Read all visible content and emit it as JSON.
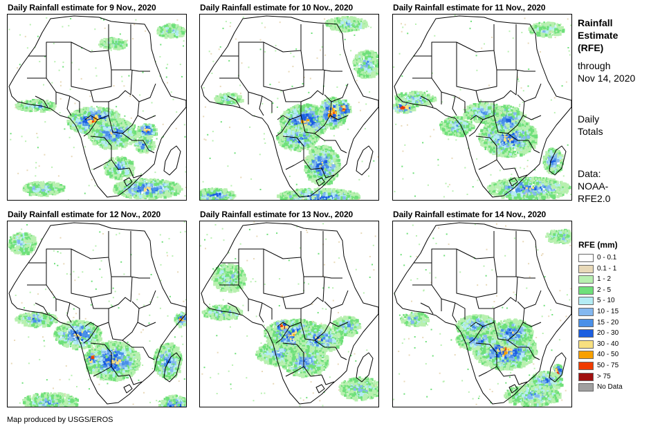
{
  "panels": [
    {
      "title": "Daily Rainfall estimate for 9 Nov., 2020",
      "day": 9
    },
    {
      "title": "Daily Rainfall estimate for 10 Nov., 2020",
      "day": 10
    },
    {
      "title": "Daily Rainfall estimate for 11 Nov., 2020",
      "day": 11
    },
    {
      "title": "Daily Rainfall estimate for 12 Nov., 2020",
      "day": 12
    },
    {
      "title": "Daily Rainfall estimate for 13 Nov., 2020",
      "day": 13
    },
    {
      "title": "Daily Rainfall estimate for 14 Nov., 2020",
      "day": 14
    }
  ],
  "sidebar": {
    "title_line1": "Rainfall",
    "title_line2": "Estimate",
    "title_line3": "(RFE)",
    "through": "through",
    "date": "Nov 14, 2020",
    "daily": "Daily",
    "totals": "Totals",
    "data_label": "Data:",
    "source_line1": "NOAA-",
    "source_line2": "RFE2.0"
  },
  "legend": {
    "title": "RFE (mm)",
    "items": [
      {
        "label": "0 - 0.1",
        "color": "#ffffff"
      },
      {
        "label": "0.1 - 1",
        "color": "#e8d9b8"
      },
      {
        "label": "1 - 2",
        "color": "#b8f0b0"
      },
      {
        "label": "2 - 5",
        "color": "#6fe07a"
      },
      {
        "label": "5 - 10",
        "color": "#b4ecf4"
      },
      {
        "label": "10 - 15",
        "color": "#84b8f0"
      },
      {
        "label": "15 - 20",
        "color": "#4a90e8"
      },
      {
        "label": "20 - 30",
        "color": "#1c5fe0"
      },
      {
        "label": "30 - 40",
        "color": "#f8e080"
      },
      {
        "label": "40 - 50",
        "color": "#f8a000"
      },
      {
        "label": "50 - 75",
        "color": "#f03c00"
      },
      {
        "label": "> 75",
        "color": "#a01010"
      },
      {
        "label": "No Data",
        "color": "#a0a0a0"
      }
    ]
  },
  "footer": "Map produced by USGS/EROS"
}
